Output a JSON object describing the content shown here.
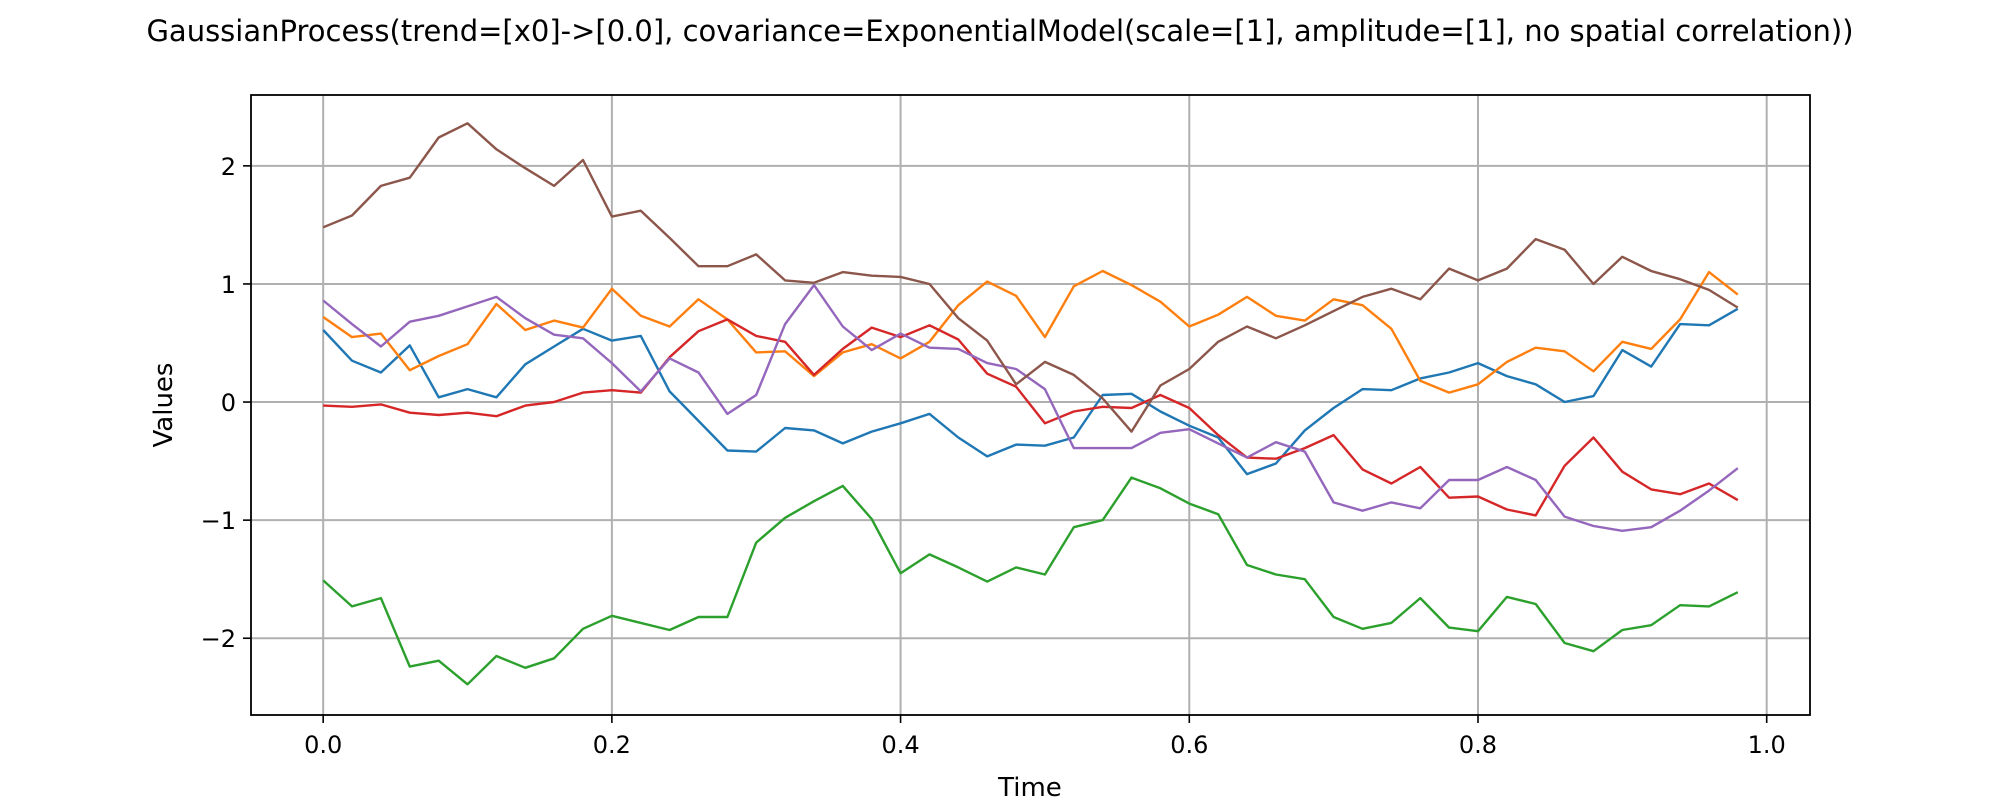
{
  "chart_data": {
    "type": "line",
    "title": "GaussianProcess(trend=[x0]->[0.0], covariance=ExponentialModel(scale=[1], amplitude=[1], no spatial correlation))",
    "xlabel": "Time",
    "ylabel": "Values",
    "xlim": [
      -0.05,
      1.03
    ],
    "ylim": [
      -2.65,
      2.6
    ],
    "xticks": [
      0.0,
      0.2,
      0.4,
      0.6,
      0.8,
      1.0
    ],
    "xtick_labels": [
      "0.0",
      "0.2",
      "0.4",
      "0.6",
      "0.8",
      "1.0"
    ],
    "yticks": [
      -2,
      -1,
      0,
      1,
      2
    ],
    "ytick_labels": [
      "−2",
      "−1",
      "0",
      "1",
      "2"
    ],
    "grid": true,
    "x": [
      0.0,
      0.02,
      0.04,
      0.06,
      0.08,
      0.1,
      0.12,
      0.14,
      0.16,
      0.18,
      0.2,
      0.22,
      0.24,
      0.26,
      0.28,
      0.3,
      0.32,
      0.34,
      0.36,
      0.38,
      0.4,
      0.42,
      0.44,
      0.46,
      0.48,
      0.5,
      0.52,
      0.54,
      0.56,
      0.58,
      0.6,
      0.62,
      0.64,
      0.66,
      0.68,
      0.7,
      0.72,
      0.74,
      0.76,
      0.78,
      0.8,
      0.82,
      0.84,
      0.86,
      0.88,
      0.9,
      0.92,
      0.94,
      0.96,
      0.98
    ],
    "series": [
      {
        "color": "#1f77b4",
        "values": [
          0.61,
          0.35,
          0.25,
          0.48,
          0.04,
          0.11,
          0.04,
          0.32,
          0.47,
          0.62,
          0.52,
          0.56,
          0.09,
          -0.16,
          -0.41,
          -0.42,
          -0.22,
          -0.24,
          -0.35,
          -0.25,
          -0.18,
          -0.1,
          -0.3,
          -0.46,
          -0.36,
          -0.37,
          -0.3,
          0.06,
          0.07,
          -0.08,
          -0.2,
          -0.3,
          -0.61,
          -0.52,
          -0.24,
          -0.05,
          0.11,
          0.1,
          0.2,
          0.25,
          0.33,
          0.22,
          0.15,
          0.0,
          0.05,
          0.44,
          0.3,
          0.66,
          0.65,
          0.79
        ]
      },
      {
        "color": "#ff7f0e",
        "values": [
          0.72,
          0.55,
          0.58,
          0.27,
          0.39,
          0.49,
          0.83,
          0.61,
          0.69,
          0.63,
          0.96,
          0.73,
          0.64,
          0.87,
          0.7,
          0.42,
          0.43,
          0.22,
          0.42,
          0.49,
          0.37,
          0.51,
          0.82,
          1.02,
          0.9,
          0.55,
          0.98,
          1.11,
          0.99,
          0.85,
          0.64,
          0.74,
          0.89,
          0.73,
          0.69,
          0.87,
          0.82,
          0.62,
          0.18,
          0.08,
          0.15,
          0.34,
          0.46,
          0.43,
          0.26,
          0.51,
          0.45,
          0.7,
          1.1,
          0.91
        ]
      },
      {
        "color": "#2ca02c",
        "values": [
          -1.51,
          -1.73,
          -1.66,
          -2.24,
          -2.19,
          -2.39,
          -2.15,
          -2.25,
          -2.17,
          -1.92,
          -1.81,
          -1.87,
          -1.93,
          -1.82,
          -1.82,
          -1.19,
          -0.98,
          -0.84,
          -0.71,
          -0.99,
          -1.45,
          -1.29,
          -1.4,
          -1.52,
          -1.4,
          -1.46,
          -1.06,
          -1.0,
          -0.64,
          -0.73,
          -0.86,
          -0.95,
          -1.38,
          -1.46,
          -1.5,
          -1.82,
          -1.92,
          -1.87,
          -1.66,
          -1.91,
          -1.94,
          -1.65,
          -1.71,
          -2.04,
          -2.11,
          -1.93,
          -1.89,
          -1.72,
          -1.73,
          -1.61
        ]
      },
      {
        "color": "#d62728",
        "values": [
          -0.03,
          -0.04,
          -0.02,
          -0.09,
          -0.11,
          -0.09,
          -0.12,
          -0.03,
          0.0,
          0.08,
          0.1,
          0.08,
          0.38,
          0.6,
          0.7,
          0.56,
          0.51,
          0.23,
          0.45,
          0.63,
          0.55,
          0.65,
          0.53,
          0.24,
          0.13,
          -0.18,
          -0.08,
          -0.04,
          -0.05,
          0.06,
          -0.05,
          -0.28,
          -0.47,
          -0.48,
          -0.39,
          -0.28,
          -0.57,
          -0.69,
          -0.55,
          -0.81,
          -0.8,
          -0.91,
          -0.96,
          -0.54,
          -0.3,
          -0.59,
          -0.74,
          -0.78,
          -0.69,
          -0.83
        ]
      },
      {
        "color": "#9467bd",
        "values": [
          0.86,
          0.66,
          0.47,
          0.68,
          0.73,
          0.81,
          0.89,
          0.71,
          0.57,
          0.54,
          0.33,
          0.09,
          0.37,
          0.25,
          -0.1,
          0.06,
          0.66,
          0.99,
          0.64,
          0.44,
          0.58,
          0.46,
          0.45,
          0.33,
          0.28,
          0.11,
          -0.39,
          -0.39,
          -0.39,
          -0.26,
          -0.23,
          -0.35,
          -0.47,
          -0.34,
          -0.42,
          -0.85,
          -0.92,
          -0.85,
          -0.9,
          -0.66,
          -0.66,
          -0.55,
          -0.66,
          -0.97,
          -1.05,
          -1.09,
          -1.06,
          -0.92,
          -0.75,
          -0.56
        ]
      },
      {
        "color": "#8c564b",
        "values": [
          1.48,
          1.58,
          1.83,
          1.9,
          2.24,
          2.36,
          2.14,
          1.98,
          1.83,
          2.05,
          1.57,
          1.62,
          1.39,
          1.15,
          1.15,
          1.25,
          1.03,
          1.01,
          1.1,
          1.07,
          1.06,
          1.0,
          0.71,
          0.52,
          0.15,
          0.34,
          0.23,
          0.03,
          -0.25,
          0.14,
          0.28,
          0.51,
          0.64,
          0.54,
          0.65,
          0.77,
          0.89,
          0.96,
          0.87,
          1.13,
          1.03,
          1.13,
          1.38,
          1.29,
          1.0,
          1.23,
          1.11,
          1.04,
          0.95,
          0.8
        ]
      }
    ]
  }
}
